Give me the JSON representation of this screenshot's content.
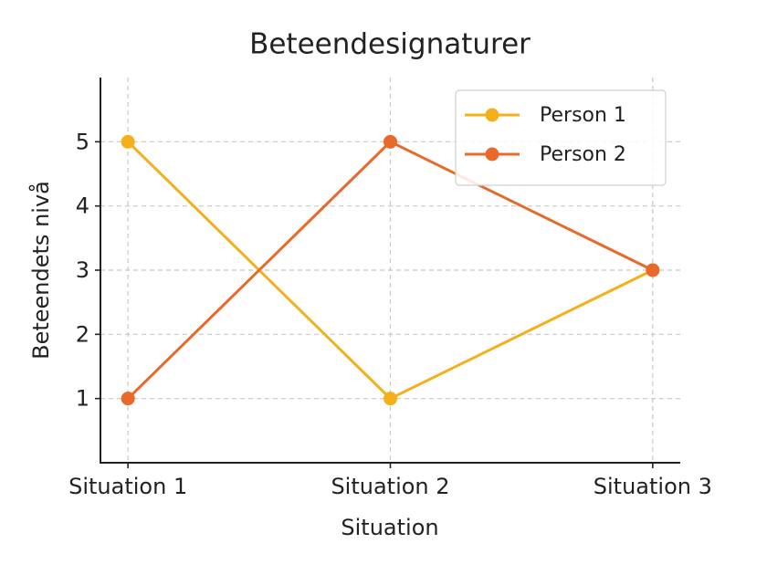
{
  "chart_data": {
    "type": "line",
    "title": "Beteendesignaturer",
    "x_label": "Situation",
    "y_label": "Beteendets nivå",
    "categories": [
      "Situation 1",
      "Situation 2",
      "Situation 3"
    ],
    "series": [
      {
        "name": "Person 1",
        "color": "#f4b01b",
        "values": [
          5,
          1,
          3
        ]
      },
      {
        "name": "Person 2",
        "color": "#e8692a",
        "values": [
          1,
          5,
          3
        ]
      }
    ],
    "ylim": [
      0,
      6
    ],
    "yticks": [
      1,
      2,
      3,
      4,
      5
    ],
    "grid": true,
    "legend": "upper right"
  }
}
